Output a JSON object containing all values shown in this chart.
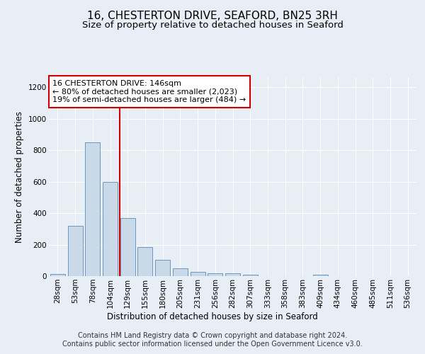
{
  "title": "16, CHESTERTON DRIVE, SEAFORD, BN25 3RH",
  "subtitle": "Size of property relative to detached houses in Seaford",
  "xlabel": "Distribution of detached houses by size in Seaford",
  "ylabel": "Number of detached properties",
  "bar_labels": [
    "28sqm",
    "53sqm",
    "78sqm",
    "104sqm",
    "129sqm",
    "155sqm",
    "180sqm",
    "205sqm",
    "231sqm",
    "256sqm",
    "282sqm",
    "307sqm",
    "333sqm",
    "358sqm",
    "383sqm",
    "409sqm",
    "434sqm",
    "460sqm",
    "485sqm",
    "511sqm",
    "536sqm"
  ],
  "bar_values": [
    15,
    320,
    850,
    600,
    370,
    185,
    105,
    50,
    25,
    20,
    18,
    10,
    0,
    0,
    0,
    10,
    0,
    0,
    0,
    0,
    0
  ],
  "bar_color": "#c9d9e8",
  "bar_edge_color": "#5a8ab5",
  "vline_x": 3.55,
  "vline_color": "#cc0000",
  "annotation_text": "16 CHESTERTON DRIVE: 146sqm\n← 80% of detached houses are smaller (2,023)\n19% of semi-detached houses are larger (484) →",
  "annotation_box_color": "#ffffff",
  "annotation_box_edge_color": "#cc0000",
  "ylim": [
    0,
    1260
  ],
  "yticks": [
    0,
    200,
    400,
    600,
    800,
    1000,
    1200
  ],
  "bg_color": "#e8eef5",
  "plot_bg_color": "#e8eef5",
  "footer_line1": "Contains HM Land Registry data © Crown copyright and database right 2024.",
  "footer_line2": "Contains public sector information licensed under the Open Government Licence v3.0.",
  "title_fontsize": 11,
  "subtitle_fontsize": 9.5,
  "axis_label_fontsize": 8.5,
  "tick_fontsize": 7.5,
  "annotation_fontsize": 8,
  "footer_fontsize": 7
}
